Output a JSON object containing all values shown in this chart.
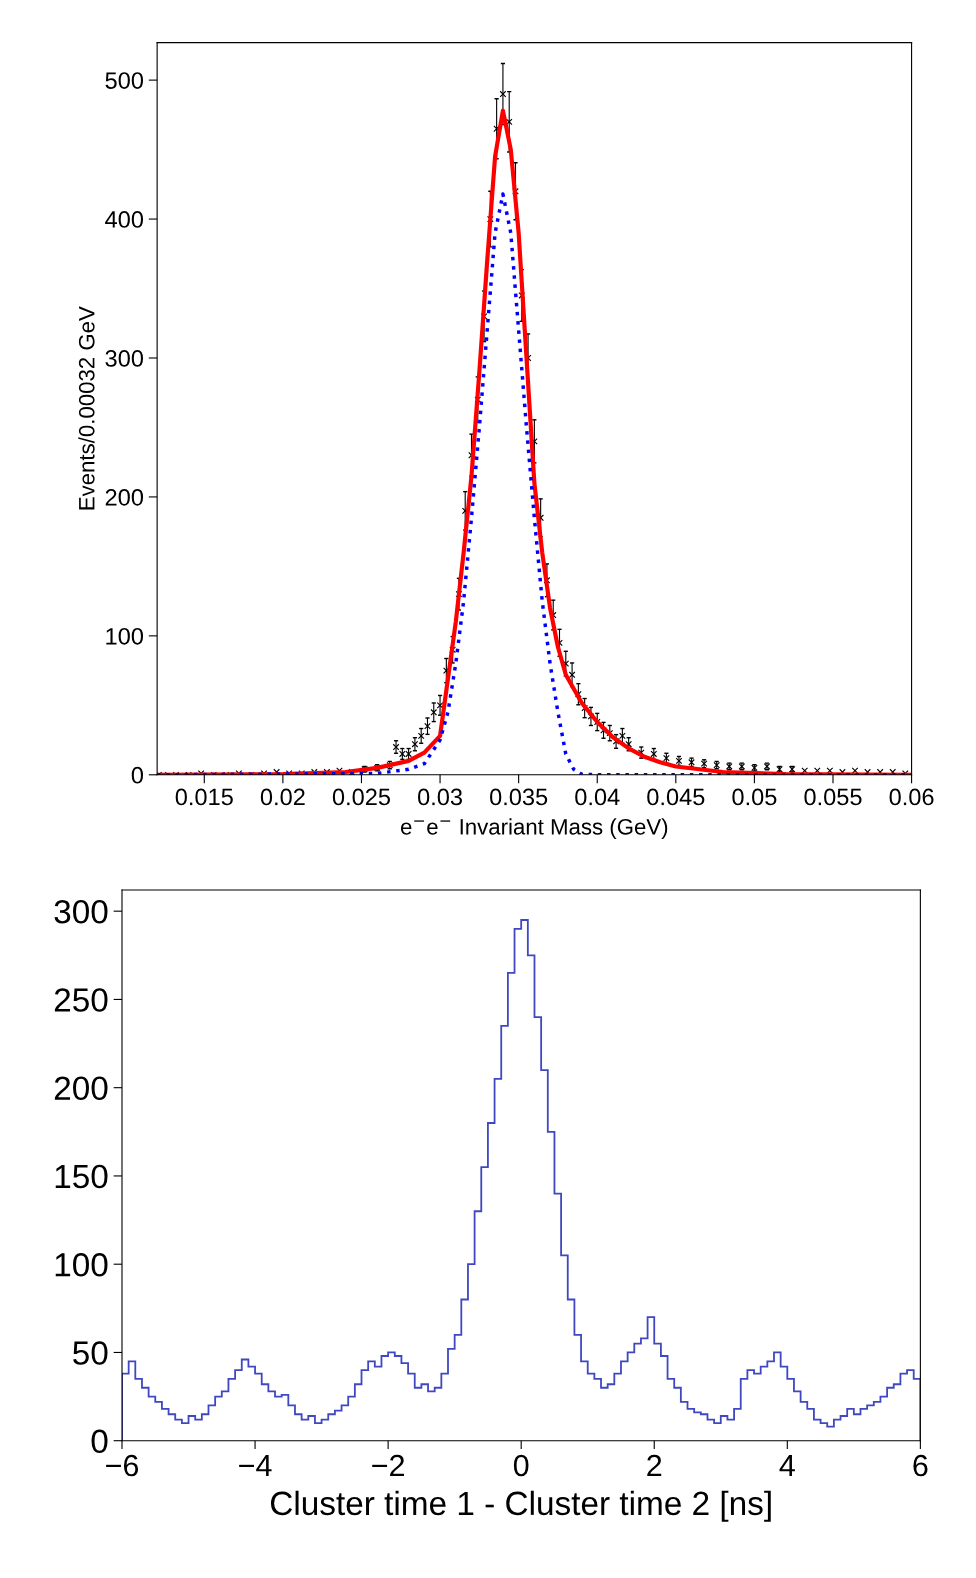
{
  "chart_data": [
    {
      "type": "scatter",
      "xlabel": "e$^{−}$e$^{−}$ Invariant Mass (GeV)",
      "ylabel": "Events/0.00032 GeV",
      "xlim": [
        0.012,
        0.06
      ],
      "ylim": [
        0,
        527
      ],
      "xticks": [
        0.015,
        0.02,
        0.025,
        0.03,
        0.035,
        0.04,
        0.045,
        0.05,
        0.055,
        0.06
      ],
      "yticks": [
        0,
        100,
        200,
        300,
        400,
        500
      ],
      "grid": false,
      "legend": false,
      "series": [
        {
          "type": "scatter",
          "color": "#000000",
          "marker": "cross",
          "x": [
            0.0124,
            0.0132,
            0.014,
            0.0148,
            0.0156,
            0.0164,
            0.0172,
            0.018,
            0.0188,
            0.0196,
            0.0204,
            0.0212,
            0.022,
            0.0228,
            0.0236,
            0.0244,
            0.0252,
            0.026,
            0.0268,
            0.0272,
            0.0276,
            0.028,
            0.0284,
            0.0288,
            0.0292,
            0.0296,
            0.03,
            0.0304,
            0.0308,
            0.0312,
            0.0316,
            0.032,
            0.0324,
            0.0328,
            0.0332,
            0.0336,
            0.034,
            0.0344,
            0.0348,
            0.0352,
            0.0356,
            0.036,
            0.0364,
            0.0368,
            0.0372,
            0.0376,
            0.038,
            0.0384,
            0.0388,
            0.0392,
            0.0396,
            0.04,
            0.0404,
            0.0408,
            0.0412,
            0.0416,
            0.042,
            0.0428,
            0.0436,
            0.0444,
            0.0452,
            0.046,
            0.0468,
            0.0476,
            0.0484,
            0.0492,
            0.05,
            0.0508,
            0.0516,
            0.0524,
            0.0532,
            0.054,
            0.0548,
            0.0556,
            0.0564,
            0.0572,
            0.058,
            0.0588,
            0.0596
          ],
          "values": [
            0,
            0,
            0,
            1,
            0,
            0,
            1,
            0,
            1,
            2,
            1,
            1,
            2,
            2,
            3,
            2,
            4,
            5,
            7,
            20,
            15,
            15,
            22,
            28,
            35,
            45,
            50,
            75,
            90,
            130,
            190,
            230,
            270,
            330,
            400,
            465,
            490,
            470,
            420,
            345,
            300,
            240,
            185,
            140,
            115,
            95,
            80,
            72,
            58,
            48,
            42,
            38,
            32,
            30,
            24,
            28,
            22,
            16,
            15,
            12,
            10,
            9,
            8,
            7,
            6,
            6,
            5,
            6,
            4,
            4,
            3,
            3,
            3,
            2,
            3,
            2,
            2,
            2,
            1
          ],
          "errors": [
            null,
            null,
            null,
            null,
            null,
            null,
            null,
            null,
            null,
            null,
            null,
            null,
            null,
            null,
            null,
            null,
            2,
            2.2,
            2.6,
            4.5,
            3.9,
            3.9,
            4.7,
            5.3,
            5.9,
            6.7,
            7.1,
            8.7,
            9.5,
            11.4,
            13.8,
            15.2,
            16.4,
            18.2,
            20,
            21.6,
            22,
            21.7,
            20.5,
            18.6,
            17.3,
            15.5,
            13.6,
            11.8,
            10.7,
            9.7,
            8.9,
            8.5,
            7.6,
            6.9,
            6.5,
            6.2,
            5.7,
            5.5,
            4.9,
            5.3,
            4.7,
            4,
            3.9,
            3.5,
            3.2,
            3,
            2.8,
            2.6,
            2.4,
            2.4,
            2.2,
            2.4,
            2,
            2,
            null,
            null,
            null,
            null,
            null,
            null,
            null,
            null,
            null
          ]
        },
        {
          "type": "line",
          "color": "#ff0000",
          "line_style": "solid",
          "x": [
            0.012,
            0.02,
            0.024,
            0.026,
            0.028,
            0.029,
            0.03,
            0.031,
            0.0315,
            0.032,
            0.0325,
            0.033,
            0.0335,
            0.034,
            0.0345,
            0.035,
            0.0355,
            0.036,
            0.0365,
            0.037,
            0.0375,
            0.038,
            0.039,
            0.04,
            0.041,
            0.042,
            0.043,
            0.044,
            0.045,
            0.048,
            0.052,
            0.06
          ],
          "values": [
            0,
            0.5,
            2,
            5,
            10,
            16,
            28,
            110,
            160,
            215,
            290,
            370,
            445,
            478,
            450,
            390,
            300,
            210,
            160,
            120,
            92,
            72,
            52,
            38,
            27,
            19,
            13,
            9,
            6,
            2,
            0.5,
            0
          ]
        },
        {
          "type": "line",
          "color": "#0000ff",
          "line_style": "dotted",
          "x": [
            0.012,
            0.026,
            0.028,
            0.029,
            0.03,
            0.0305,
            0.031,
            0.0315,
            0.032,
            0.0325,
            0.033,
            0.0335,
            0.034,
            0.0345,
            0.035,
            0.0355,
            0.036,
            0.0365,
            0.037,
            0.0375,
            0.038,
            0.0385,
            0.039,
            0.04,
            0.06
          ],
          "values": [
            0,
            1,
            4,
            8,
            25,
            45,
            80,
            125,
            185,
            250,
            320,
            390,
            418,
            390,
            320,
            250,
            185,
            125,
            80,
            45,
            15,
            4,
            0.5,
            0,
            0
          ]
        }
      ]
    },
    {
      "type": "histogram",
      "xlabel": "Cluster time 1 - Cluster time 2 [ns]",
      "color": "#3f48c0",
      "xlim": [
        -6,
        6
      ],
      "ylim": [
        0,
        312
      ],
      "xticks": [
        {
          "value": -6,
          "label": "−6"
        },
        {
          "value": -4,
          "label": "−4"
        },
        {
          "value": -2,
          "label": "−2"
        },
        0,
        2,
        4,
        6
      ],
      "yticks": [
        0,
        50,
        100,
        150,
        200,
        250,
        300
      ],
      "grid": false,
      "legend": false,
      "bins": [
        -6.0,
        -5.9,
        -5.8,
        -5.7,
        -5.6,
        -5.5,
        -5.4,
        -5.3,
        -5.2,
        -5.1,
        -5.0,
        -4.9,
        -4.8,
        -4.7,
        -4.6,
        -4.5,
        -4.4,
        -4.3,
        -4.2,
        -4.1,
        -4.0,
        -3.9,
        -3.8,
        -3.7,
        -3.6,
        -3.5,
        -3.4,
        -3.3,
        -3.2,
        -3.1,
        -3.0,
        -2.9,
        -2.8,
        -2.7,
        -2.6,
        -2.5,
        -2.4,
        -2.3,
        -2.2,
        -2.1,
        -2.0,
        -1.9,
        -1.8,
        -1.7,
        -1.6,
        -1.5,
        -1.4,
        -1.3,
        -1.2,
        -1.1,
        -1.0,
        -0.9,
        -0.8,
        -0.7,
        -0.6,
        -0.5,
        -0.4,
        -0.3,
        -0.2,
        -0.1,
        0.0,
        0.1,
        0.2,
        0.3,
        0.4,
        0.5,
        0.6,
        0.7,
        0.8,
        0.9,
        1.0,
        1.1,
        1.2,
        1.3,
        1.4,
        1.5,
        1.6,
        1.7,
        1.8,
        1.9,
        2.0,
        2.1,
        2.2,
        2.3,
        2.4,
        2.5,
        2.6,
        2.7,
        2.8,
        2.9,
        3.0,
        3.1,
        3.2,
        3.3,
        3.4,
        3.5,
        3.6,
        3.7,
        3.8,
        3.9,
        4.0,
        4.1,
        4.2,
        4.3,
        4.4,
        4.5,
        4.6,
        4.7,
        4.8,
        4.9,
        5.0,
        5.1,
        5.2,
        5.3,
        5.4,
        5.5,
        5.6,
        5.7,
        5.8,
        5.9,
        6.0
      ],
      "values": [
        38,
        45,
        35,
        30,
        25,
        22,
        18,
        15,
        12,
        10,
        14,
        12,
        15,
        20,
        25,
        28,
        35,
        40,
        46,
        42,
        38,
        32,
        28,
        25,
        26,
        20,
        15,
        12,
        14,
        10,
        12,
        15,
        17,
        20,
        25,
        32,
        40,
        45,
        42,
        48,
        50,
        48,
        44,
        38,
        30,
        32,
        28,
        30,
        38,
        52,
        60,
        80,
        100,
        130,
        155,
        180,
        205,
        235,
        265,
        290,
        295,
        275,
        240,
        210,
        175,
        140,
        105,
        80,
        60,
        45,
        38,
        35,
        30,
        32,
        38,
        45,
        50,
        55,
        58,
        70,
        55,
        48,
        35,
        30,
        22,
        18,
        16,
        15,
        12,
        10,
        14,
        12,
        18,
        35,
        40,
        38,
        42,
        45,
        50,
        42,
        35,
        28,
        22,
        18,
        12,
        10,
        8,
        12,
        14,
        18,
        15,
        18,
        20,
        22,
        25,
        30,
        32,
        38,
        40,
        35
      ]
    }
  ]
}
